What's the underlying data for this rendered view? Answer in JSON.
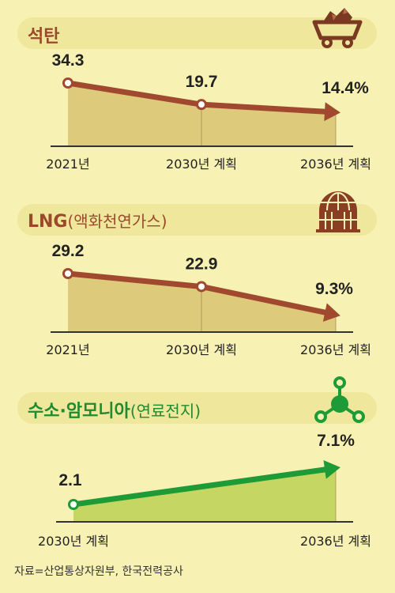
{
  "colors": {
    "background": "#f7f1b3",
    "banner_fill": "#efe79c",
    "brown_title": "#9a4a2b",
    "brown_line": "#a0492f",
    "brown_area": "#d6c06d",
    "green_title": "#1f8a2f",
    "green_line": "#1e9a37",
    "green_area": "#b9d04e",
    "axis": "#333333",
    "label": "#222222"
  },
  "source": "자료=산업통상자원부, 한국전력공사",
  "chart_data": [
    {
      "type": "line",
      "title": "석탄",
      "icon": "coal-cart-icon",
      "categories": [
        "2021년",
        "2030년 계획",
        "2036년 계획"
      ],
      "values": [
        34.3,
        19.7,
        14.4
      ],
      "value_labels": [
        "34.3",
        "19.7",
        "14.4%"
      ],
      "unit": "%"
    },
    {
      "type": "line",
      "title": "LNG",
      "subtitle": "(액화천연가스)",
      "icon": "lng-tank-icon",
      "categories": [
        "2021년",
        "2030년 계획",
        "2036년 계획"
      ],
      "values": [
        29.2,
        22.9,
        9.3
      ],
      "value_labels": [
        "29.2",
        "22.9",
        "9.3%"
      ],
      "unit": "%"
    },
    {
      "type": "line",
      "title": "수소·암모니아",
      "subtitle": "(연료전지)",
      "icon": "molecule-icon",
      "categories": [
        "2030년 계획",
        "2036년 계획"
      ],
      "values": [
        2.1,
        7.1
      ],
      "value_labels": [
        "2.1",
        "7.1%"
      ],
      "unit": "%"
    }
  ]
}
